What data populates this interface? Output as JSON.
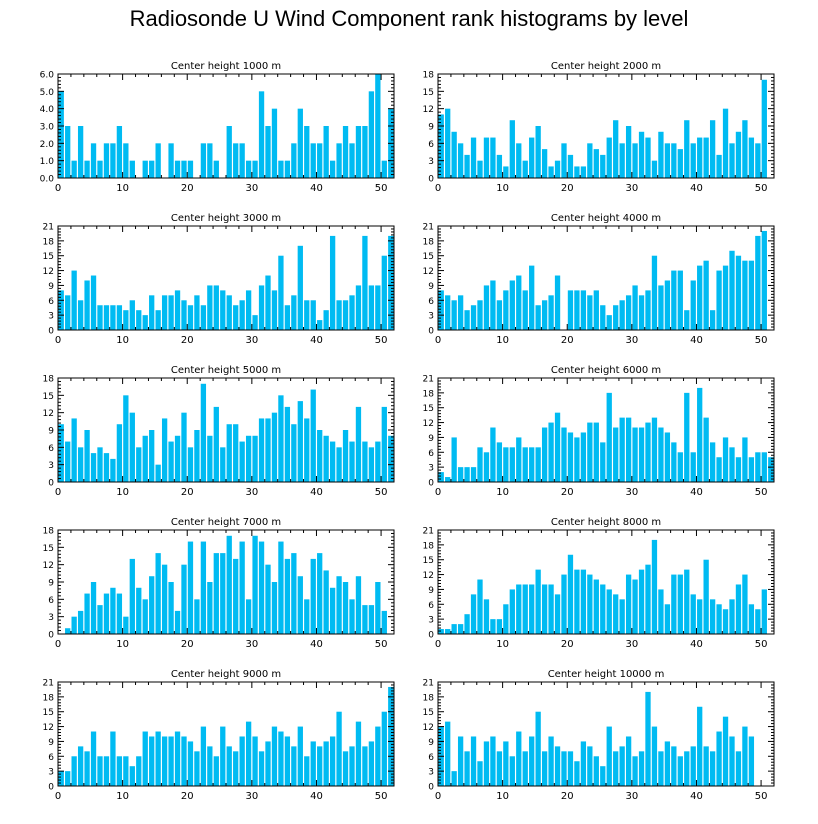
{
  "title": "Radiosonde U Wind Component rank histograms by level",
  "colors": {
    "bar": "#00bbf2",
    "axis": "#000000",
    "background": "#ffffff"
  },
  "chart_data": [
    {
      "type": "bar",
      "title": "Center height 1000 m",
      "x_ticks": [
        0,
        10,
        20,
        30,
        40,
        50
      ],
      "xlim": [
        0,
        52
      ],
      "y_ticks": [
        0,
        1,
        2,
        3,
        4,
        5,
        6
      ],
      "y_tick_labels": [
        "0.0",
        "1.0",
        "2.0",
        "3.0",
        "4.0",
        "5.0",
        "6.0"
      ],
      "ylim": [
        0,
        6
      ],
      "values": [
        5,
        3,
        1,
        3,
        1,
        2,
        1,
        2,
        2,
        3,
        2,
        1,
        0,
        1,
        1,
        2,
        0,
        2,
        1,
        1,
        1,
        0,
        2,
        2,
        1,
        0,
        3,
        2,
        2,
        1,
        1,
        5,
        3,
        4,
        1,
        1,
        2,
        4,
        3,
        2,
        2,
        3,
        1,
        2,
        3,
        2,
        3,
        3,
        5,
        6,
        1,
        4
      ]
    },
    {
      "type": "bar",
      "title": "Center height 2000 m",
      "x_ticks": [
        0,
        10,
        20,
        30,
        40,
        50
      ],
      "xlim": [
        0,
        52
      ],
      "y_ticks": [
        0,
        3,
        6,
        9,
        12,
        15,
        18
      ],
      "y_tick_labels": [
        "0",
        "3",
        "6",
        "9",
        "12",
        "15",
        "18"
      ],
      "ylim": [
        0,
        18
      ],
      "values": [
        11,
        12,
        8,
        6,
        4,
        7,
        3,
        7,
        7,
        4,
        2,
        10,
        6,
        3,
        7,
        9,
        5,
        2,
        3,
        6,
        4,
        2,
        2,
        6,
        5,
        4,
        7,
        10,
        6,
        9,
        6,
        8,
        7,
        3,
        8,
        6,
        6,
        5,
        10,
        6,
        7,
        7,
        10,
        4,
        12,
        6,
        8,
        10,
        7,
        6,
        17,
        0
      ]
    },
    {
      "type": "bar",
      "title": "Center height 3000 m",
      "x_ticks": [
        0,
        10,
        20,
        30,
        40,
        50
      ],
      "xlim": [
        0,
        52
      ],
      "y_ticks": [
        0,
        3,
        6,
        9,
        12,
        15,
        18,
        21
      ],
      "y_tick_labels": [
        "0",
        "3",
        "6",
        "9",
        "12",
        "15",
        "18",
        "21"
      ],
      "ylim": [
        0,
        21
      ],
      "values": [
        8,
        7,
        12,
        6,
        10,
        11,
        5,
        5,
        5,
        5,
        4,
        6,
        4,
        3,
        7,
        4,
        7,
        7,
        8,
        6,
        5,
        7,
        5,
        9,
        9,
        8,
        7,
        5,
        6,
        8,
        3,
        9,
        11,
        8,
        15,
        5,
        7,
        17,
        6,
        6,
        2,
        4,
        19,
        6,
        6,
        7,
        9,
        19,
        9,
        9,
        15,
        19
      ]
    },
    {
      "type": "bar",
      "title": "Center height 4000 m",
      "x_ticks": [
        0,
        10,
        20,
        30,
        40,
        50
      ],
      "xlim": [
        0,
        52
      ],
      "y_ticks": [
        0,
        3,
        6,
        9,
        12,
        15,
        18,
        21
      ],
      "y_tick_labels": [
        "0",
        "3",
        "6",
        "9",
        "12",
        "15",
        "18",
        "21"
      ],
      "ylim": [
        0,
        21
      ],
      "values": [
        8,
        7,
        6,
        7,
        4,
        5,
        6,
        9,
        10,
        6,
        8,
        10,
        11,
        8,
        13,
        5,
        6,
        7,
        11,
        0,
        8,
        8,
        8,
        7,
        8,
        5,
        3,
        5,
        6,
        7,
        9,
        7,
        8,
        15,
        9,
        10,
        12,
        12,
        4,
        10,
        13,
        14,
        4,
        12,
        13,
        16,
        15,
        14,
        14,
        19,
        20,
        0
      ]
    },
    {
      "type": "bar",
      "title": "Center height 5000 m",
      "x_ticks": [
        0,
        10,
        20,
        30,
        40,
        50
      ],
      "xlim": [
        0,
        52
      ],
      "y_ticks": [
        0,
        3,
        6,
        9,
        12,
        15,
        18
      ],
      "y_tick_labels": [
        "0",
        "3",
        "6",
        "9",
        "12",
        "15",
        "18"
      ],
      "ylim": [
        0,
        18
      ],
      "values": [
        10,
        7,
        11,
        6,
        9,
        5,
        6,
        5,
        4,
        10,
        15,
        12,
        6,
        8,
        9,
        3,
        11,
        7,
        8,
        12,
        6,
        9,
        17,
        8,
        13,
        6,
        10,
        10,
        7,
        8,
        8,
        11,
        11,
        12,
        15,
        13,
        10,
        14,
        11,
        16,
        9,
        8,
        7,
        6,
        9,
        7,
        13,
        7,
        6,
        7,
        13,
        8
      ]
    },
    {
      "type": "bar",
      "title": "Center height 6000 m",
      "x_ticks": [
        0,
        10,
        20,
        30,
        40,
        50
      ],
      "xlim": [
        0,
        52
      ],
      "y_ticks": [
        0,
        3,
        6,
        9,
        12,
        15,
        18,
        21
      ],
      "y_tick_labels": [
        "0",
        "3",
        "6",
        "9",
        "12",
        "15",
        "18",
        "21"
      ],
      "ylim": [
        0,
        21
      ],
      "values": [
        2,
        1,
        9,
        3,
        3,
        3,
        7,
        6,
        11,
        8,
        7,
        7,
        9,
        7,
        7,
        7,
        11,
        12,
        14,
        11,
        10,
        9,
        10,
        12,
        12,
        8,
        18,
        11,
        13,
        13,
        11,
        11,
        12,
        13,
        11,
        10,
        8,
        6,
        18,
        6,
        19,
        13,
        8,
        5,
        9,
        7,
        5,
        9,
        5,
        6,
        6,
        5
      ]
    },
    {
      "type": "bar",
      "title": "Center height 7000 m",
      "x_ticks": [
        0,
        10,
        20,
        30,
        40,
        50
      ],
      "xlim": [
        0,
        52
      ],
      "y_ticks": [
        0,
        3,
        6,
        9,
        12,
        15,
        18
      ],
      "y_tick_labels": [
        "0",
        "3",
        "6",
        "9",
        "12",
        "15",
        "18"
      ],
      "ylim": [
        0,
        18
      ],
      "values": [
        0,
        1,
        3,
        4,
        7,
        9,
        5,
        7,
        8,
        7,
        3,
        13,
        8,
        6,
        10,
        14,
        12,
        9,
        4,
        12,
        16,
        6,
        16,
        9,
        14,
        14,
        17,
        13,
        16,
        6,
        17,
        16,
        12,
        9,
        16,
        13,
        14,
        10,
        6,
        13,
        14,
        11,
        8,
        10,
        9,
        6,
        10,
        5,
        5,
        9,
        4,
        0
      ]
    },
    {
      "type": "bar",
      "title": "Center height 8000 m",
      "x_ticks": [
        0,
        10,
        20,
        30,
        40,
        50
      ],
      "xlim": [
        0,
        52
      ],
      "y_ticks": [
        0,
        3,
        6,
        9,
        12,
        15,
        18,
        21
      ],
      "y_tick_labels": [
        "0",
        "3",
        "6",
        "9",
        "12",
        "15",
        "18",
        "21"
      ],
      "ylim": [
        0,
        21
      ],
      "values": [
        1,
        1,
        2,
        2,
        4,
        8,
        11,
        7,
        3,
        3,
        6,
        9,
        10,
        10,
        10,
        13,
        10,
        10,
        8,
        12,
        16,
        13,
        13,
        12,
        11,
        10,
        9,
        8,
        7,
        12,
        11,
        13,
        14,
        19,
        9,
        6,
        12,
        12,
        13,
        8,
        7,
        15,
        7,
        6,
        5,
        7,
        10,
        12,
        6,
        5,
        9,
        0
      ]
    },
    {
      "type": "bar",
      "title": "Center height 9000 m",
      "x_ticks": [
        0,
        10,
        20,
        30,
        40,
        50
      ],
      "xlim": [
        0,
        52
      ],
      "y_ticks": [
        0,
        3,
        6,
        9,
        12,
        15,
        18,
        21
      ],
      "y_tick_labels": [
        "0",
        "3",
        "6",
        "9",
        "12",
        "15",
        "18",
        "21"
      ],
      "ylim": [
        0,
        21
      ],
      "values": [
        3,
        3,
        6,
        8,
        7,
        11,
        6,
        6,
        11,
        6,
        6,
        4,
        6,
        11,
        10,
        11,
        10,
        10,
        11,
        10,
        9,
        7,
        12,
        8,
        6,
        12,
        8,
        7,
        10,
        13,
        10,
        7,
        9,
        12,
        11,
        10,
        8,
        12,
        6,
        9,
        8,
        9,
        10,
        15,
        7,
        8,
        13,
        8,
        9,
        12,
        15,
        20
      ]
    },
    {
      "type": "bar",
      "title": "Center height 10000 m",
      "x_ticks": [
        0,
        10,
        20,
        30,
        40,
        50
      ],
      "xlim": [
        0,
        52
      ],
      "y_ticks": [
        0,
        3,
        6,
        9,
        12,
        15,
        18,
        21
      ],
      "y_tick_labels": [
        "0",
        "3",
        "6",
        "9",
        "12",
        "15",
        "18",
        "21"
      ],
      "ylim": [
        0,
        21
      ],
      "values": [
        12,
        13,
        3,
        10,
        7,
        10,
        5,
        9,
        10,
        7,
        9,
        6,
        11,
        7,
        10,
        15,
        7,
        10,
        8,
        7,
        7,
        5,
        9,
        8,
        6,
        4,
        12,
        7,
        8,
        10,
        6,
        7,
        19,
        12,
        7,
        9,
        8,
        6,
        7,
        8,
        16,
        8,
        7,
        11,
        14,
        10,
        7,
        12,
        10,
        0,
        0,
        0
      ]
    }
  ]
}
